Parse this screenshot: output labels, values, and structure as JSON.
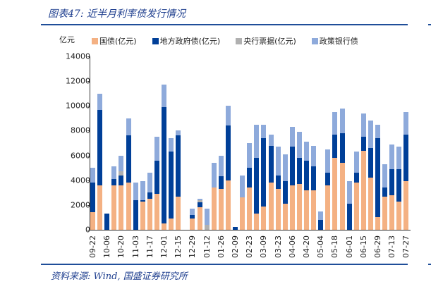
{
  "header": {
    "title": "图表47:  近半月利率债发行情况"
  },
  "footer": {
    "source": "资料来源:  Wind,  国盛证券研究所"
  },
  "colors": {
    "guozhai": "#f4b183",
    "difang": "#003f98",
    "yanghang": "#b0b0b0",
    "zhengce": "#8eaadb",
    "accent": "#1f4e99"
  },
  "chart_data": {
    "type": "bar",
    "stacked": true,
    "title": "近半月利率债发行情况",
    "xlabel": "",
    "ylabel": "亿元",
    "ylim": [
      0,
      14000
    ],
    "yticks": [
      0,
      2000,
      4000,
      6000,
      8000,
      10000,
      12000,
      14000
    ],
    "xtick_labels": [
      "09-22",
      "10-06",
      "10-20",
      "11-03",
      "11-17",
      "12-01",
      "12-15",
      "12-29",
      "01-12",
      "01-26",
      "02-09",
      "02-23",
      "03-09",
      "03-23",
      "04-06",
      "04-20",
      "05-04",
      "05-18",
      "06-01",
      "06-15",
      "06-29",
      "07-13",
      "07-27"
    ],
    "legend": [
      "国债(亿元)",
      "地方政府债(亿元)",
      "央行票据(亿元)",
      "政策银行债"
    ],
    "legend_position": "top",
    "categories": [
      "09-22",
      "09-29",
      "10-06",
      "10-13",
      "10-20",
      "10-27",
      "11-03",
      "11-10",
      "11-17",
      "11-24",
      "12-01",
      "12-08",
      "12-15",
      "12-22",
      "12-29",
      "01-05",
      "01-12",
      "01-19",
      "01-26",
      "02-02",
      "02-09",
      "02-16",
      "02-23",
      "03-02",
      "03-09",
      "03-16",
      "03-23",
      "03-30",
      "04-06",
      "04-13",
      "04-20",
      "04-27",
      "05-04",
      "05-11",
      "05-18",
      "05-25",
      "06-01",
      "06-08",
      "06-15",
      "06-22",
      "06-29",
      "07-06",
      "07-13",
      "07-20",
      "07-27"
    ],
    "series": [
      {
        "name": "国债(亿元)",
        "values": [
          1400,
          3600,
          0,
          3600,
          3600,
          3800,
          0,
          2300,
          2500,
          2900,
          500,
          900,
          2700,
          0,
          900,
          1800,
          0,
          3400,
          3300,
          4000,
          0,
          2600,
          3400,
          1300,
          1900,
          3800,
          3300,
          2100,
          3600,
          3700,
          3200,
          3200,
          0,
          3600,
          5800,
          5400,
          0,
          3800,
          6400,
          4200,
          1000,
          2700,
          2800,
          2300,
          3900
        ]
      },
      {
        "name": "地方政府债(亿元)",
        "values": [
          2400,
          6100,
          1300,
          500,
          800,
          3800,
          2400,
          100,
          500,
          2700,
          9400,
          5400,
          4900,
          0,
          300,
          400,
          0,
          0,
          1000,
          4400,
          200,
          0,
          1600,
          4500,
          5500,
          3000,
          1100,
          1800,
          3100,
          2100,
          2400,
          1900,
          800,
          1000,
          1900,
          2400,
          2100,
          800,
          1100,
          2400,
          6400,
          700,
          2100,
          2600,
          3800
        ]
      },
      {
        "name": "央行票据(亿元)",
        "values": [
          0,
          0,
          0,
          0,
          300,
          0,
          0,
          0,
          0,
          0,
          0,
          0,
          0,
          0,
          0,
          200,
          400,
          0,
          0,
          0,
          0,
          0,
          0,
          0,
          0,
          0,
          0,
          0,
          0,
          0,
          0,
          0,
          0,
          0,
          0,
          0,
          0,
          0,
          0,
          0,
          0,
          0,
          0,
          0,
          0
        ]
      },
      {
        "name": "政策银行债",
        "values": [
          1200,
          1300,
          0,
          1000,
          1300,
          1400,
          1400,
          1500,
          1600,
          1900,
          1800,
          1100,
          400,
          0,
          500,
          100,
          1300,
          2000,
          1700,
          1600,
          0,
          1800,
          2000,
          2700,
          1100,
          900,
          2300,
          2200,
          1600,
          2100,
          1500,
          1700,
          700,
          1900,
          1800,
          2000,
          1800,
          1700,
          1900,
          2200,
          1100,
          1900,
          2000,
          1800,
          1800
        ]
      }
    ]
  }
}
